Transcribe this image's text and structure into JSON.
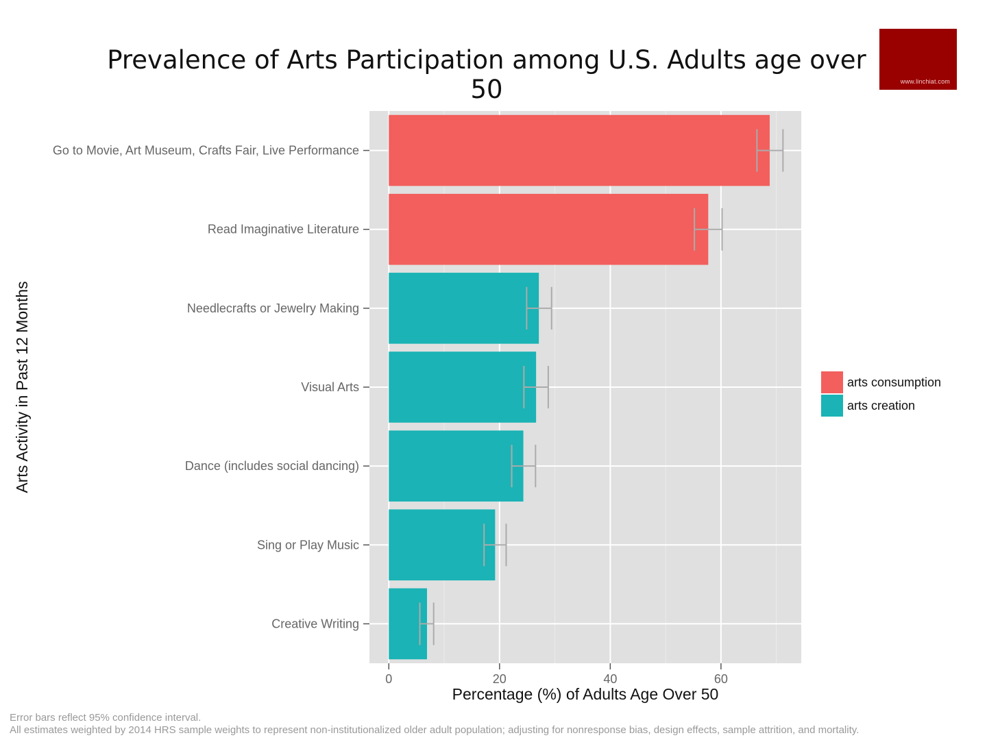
{
  "title": "Prevalence of Arts Participation among U.S. Adults age over 50",
  "logo": {
    "text": "www.linchiat.com",
    "color": "#990000"
  },
  "footnotes": [
    "Error bars reflect 95% confidence interval.",
    "All estimates weighted by 2014 HRS sample weights to represent non-institutionalized older adult population; adjusting for nonresponse bias, design effects, sample attrition, and mortality."
  ],
  "legend": [
    {
      "label": "arts consumption",
      "color": "#F25F5C"
    },
    {
      "label": "arts creation",
      "color": "#1BB3B5"
    }
  ],
  "chart_data": {
    "type": "bar",
    "orientation": "horizontal",
    "title": "Prevalence of Arts Participation among U.S. Adults age over 50",
    "xlabel": "Percentage (%) of Adults Age Over 50",
    "ylabel": "Arts Activity in Past 12 Months",
    "xlim": [
      -3.5,
      74.5
    ],
    "xticks": [
      0,
      20,
      40,
      60
    ],
    "grid": true,
    "panel_background": "#E0E0E0",
    "legend_position": "right",
    "categories": [
      "Go to Movie, Art Museum, Crafts Fair, Live Performance",
      "Read Imaginative Literature",
      "Needlecrafts or Jewelry Making",
      "Visual Arts",
      "Dance (includes social dancing)",
      "Sing or Play Music",
      "Creative Writing"
    ],
    "values": [
      68.8,
      57.7,
      27.1,
      26.6,
      24.3,
      19.2,
      6.9
    ],
    "ci_low": [
      66.5,
      55.2,
      24.9,
      24.4,
      22.2,
      17.2,
      5.6
    ],
    "ci_high": [
      71.2,
      60.2,
      29.4,
      28.8,
      26.5,
      21.2,
      8.1
    ],
    "groups": [
      "arts consumption",
      "arts consumption",
      "arts creation",
      "arts creation",
      "arts creation",
      "arts creation",
      "arts creation"
    ],
    "series": [
      {
        "name": "arts consumption",
        "color": "#F25F5C"
      },
      {
        "name": "arts creation",
        "color": "#1BB3B5"
      }
    ]
  }
}
